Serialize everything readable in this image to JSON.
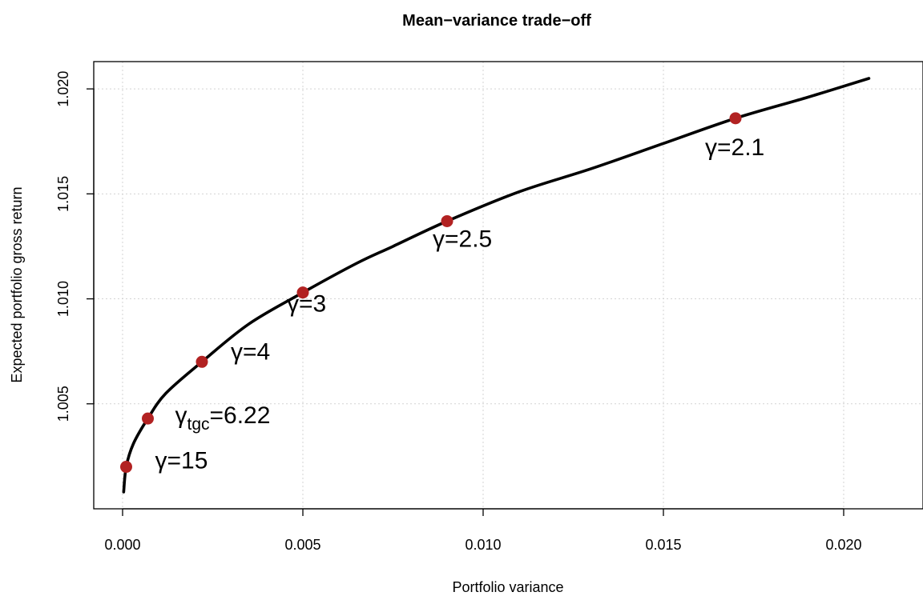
{
  "chart_data": {
    "type": "line",
    "title": "Mean−variance trade−off",
    "xlabel": "Portfolio variance",
    "ylabel": "Expected portfolio gross return",
    "xlim": [
      -0.0008,
      0.0222
    ],
    "ylim": [
      1.0,
      1.0213
    ],
    "x_ticks": [
      0.0,
      0.005,
      0.01,
      0.015,
      0.02
    ],
    "x_tick_labels": [
      "0.000",
      "0.005",
      "0.010",
      "0.015",
      "0.020"
    ],
    "y_ticks": [
      1.005,
      1.01,
      1.015,
      1.02
    ],
    "y_tick_labels": [
      "1.005",
      "1.010",
      "1.015",
      "1.020"
    ],
    "grid": true,
    "line_color": "#000000",
    "marker_color": "#b22222",
    "curve": {
      "x": [
        3e-05,
        0.0001,
        0.0003,
        0.0007,
        0.0012,
        0.0022,
        0.0035,
        0.005,
        0.0065,
        0.0075,
        0.009,
        0.011,
        0.013,
        0.015,
        0.017,
        0.019,
        0.0207
      ],
      "y": [
        1.0008,
        1.002,
        1.0031,
        1.0043,
        1.0055,
        1.007,
        1.0088,
        1.0103,
        1.0117,
        1.0125,
        1.0137,
        1.0151,
        1.0162,
        1.0174,
        1.0186,
        1.0196,
        1.0205
      ]
    },
    "points": [
      {
        "gamma": "15",
        "label": "γ=15",
        "x": 0.0001,
        "y": 1.002
      },
      {
        "gamma": "6.22",
        "label_main": "γ",
        "label_sub": "tgc",
        "label_rest": "=6.22",
        "x": 0.0007,
        "y": 1.0043
      },
      {
        "gamma": "4",
        "label": "γ=4",
        "x": 0.0022,
        "y": 1.007
      },
      {
        "gamma": "3",
        "label": "γ=3",
        "x": 0.005,
        "y": 1.0103
      },
      {
        "gamma": "2.5",
        "label": "γ=2.5",
        "x": 0.009,
        "y": 1.0137
      },
      {
        "gamma": "2.1",
        "label": "γ=2.1",
        "x": 0.017,
        "y": 1.0186
      }
    ]
  }
}
